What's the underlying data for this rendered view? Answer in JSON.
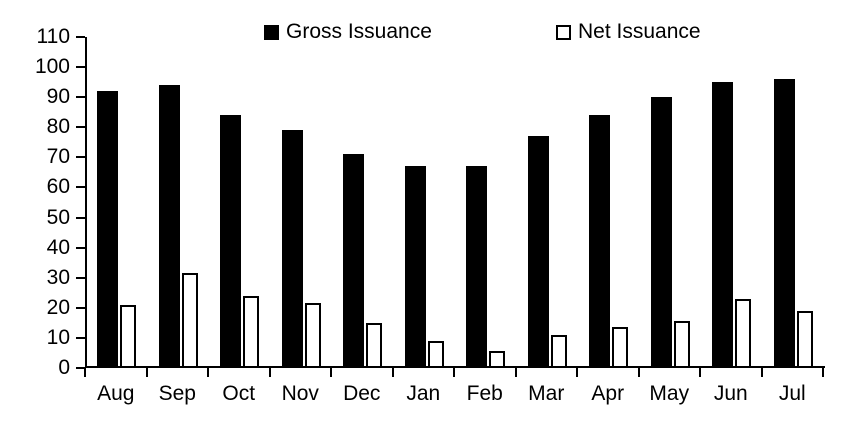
{
  "chart_data": {
    "type": "bar",
    "title": "",
    "xlabel": "",
    "ylabel": "",
    "categories": [
      "Aug",
      "Sep",
      "Oct",
      "Nov",
      "Dec",
      "Jan",
      "Feb",
      "Mar",
      "Apr",
      "May",
      "Jun",
      "Jul"
    ],
    "series": [
      {
        "name": "Gross Issuance",
        "style": "filled",
        "fill": "#000000",
        "values": [
          92,
          94,
          84,
          79,
          71,
          67,
          67,
          77,
          84,
          90,
          95,
          96
        ]
      },
      {
        "name": "Net Issuance",
        "style": "outline",
        "fill": "#ffffff",
        "values": [
          21,
          31.5,
          24,
          21.5,
          15,
          9,
          5.5,
          11,
          13.5,
          15.5,
          23,
          19
        ]
      }
    ],
    "ylim": [
      0,
      110
    ],
    "y_ticks": [
      0,
      10,
      20,
      30,
      40,
      50,
      60,
      70,
      80,
      90,
      100,
      110
    ],
    "grid": false,
    "legend_position": "top"
  },
  "colors": {
    "background": "#ffffff",
    "axis": "#000000",
    "text": "#000000",
    "gross_bar": "#000000",
    "net_bar_fill": "#ffffff",
    "net_bar_outline": "#000000"
  }
}
